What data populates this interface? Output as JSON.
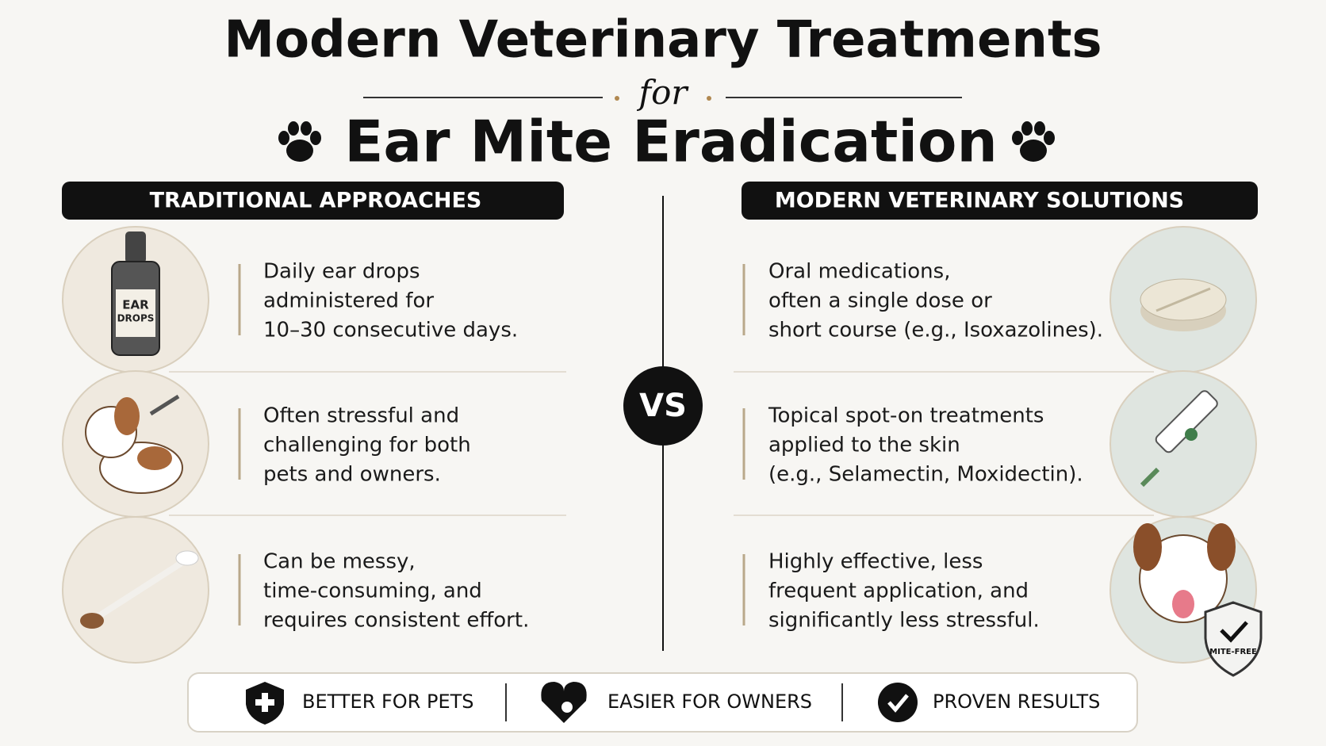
{
  "header": {
    "title": "Modern Veterinary Treatments",
    "connector": "for",
    "subtitle": "Ear Mite Eradication"
  },
  "left": {
    "heading": "TRADITIONAL APPROACHES",
    "items": [
      {
        "lines": [
          "Daily ear drops",
          "administered for",
          "10–30 consecutive days."
        ]
      },
      {
        "lines": [
          "Often stressful and",
          "challenging for both",
          "pets and owners."
        ]
      },
      {
        "lines": [
          "Can be messy,",
          "time-consuming, and",
          "requires consistent effort."
        ]
      }
    ]
  },
  "vs": "VS",
  "right": {
    "heading": "MODERN VETERINARY SOLUTIONS",
    "items": [
      {
        "lines": [
          "Oral medications,",
          "often a single dose or",
          "short course (e.g., Isoxazolines)."
        ]
      },
      {
        "lines": [
          "Topical spot-on treatments",
          "applied to the skin",
          "(e.g., Selamectin, Moxidectin)."
        ]
      },
      {
        "lines": [
          "Highly effective, less",
          "frequent application, and",
          "significantly less stressful."
        ]
      }
    ]
  },
  "illustrations": {
    "bottle_label": [
      "EAR",
      "DROPS"
    ],
    "badge": "MITE-FREE"
  },
  "benefits": [
    {
      "label": "BETTER FOR PETS"
    },
    {
      "label": "EASIER FOR OWNERS"
    },
    {
      "label": "PROVEN RESULTS"
    }
  ]
}
